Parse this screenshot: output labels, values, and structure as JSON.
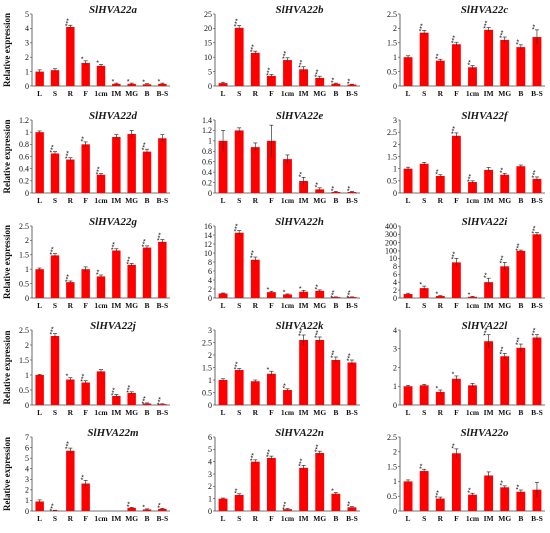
{
  "figure": {
    "ylabel": "Relative expression",
    "bar_color": "#ff0000",
    "error_color": "#333333"
  },
  "chart_data": [
    {
      "type": "bar",
      "title": "SlHVA22a",
      "ylabel": "Relative expression",
      "categories": [
        "L",
        "S",
        "R",
        "F",
        "1cm",
        "IM",
        "MG",
        "B",
        "B-S"
      ],
      "values": [
        1.0,
        1.1,
        4.1,
        1.6,
        1.4,
        0.15,
        0.15,
        0.12,
        0.15
      ],
      "errors": [
        0.12,
        0.1,
        0.12,
        0.15,
        0.1,
        0.05,
        0.05,
        0.04,
        0.05
      ],
      "significance": [
        "",
        "",
        "***",
        "*",
        "*",
        "*",
        "*",
        "*",
        "*"
      ],
      "ylim": [
        0,
        5
      ],
      "yticks": [
        "0",
        "1",
        "2",
        "3",
        "4",
        "5"
      ]
    },
    {
      "type": "bar",
      "title": "SlHVA22b",
      "ylabel": "",
      "categories": [
        "L",
        "S",
        "R",
        "F",
        "1cm",
        "IM",
        "MG",
        "B",
        "B-S"
      ],
      "values": [
        1.0,
        20.2,
        11.5,
        3.5,
        9.0,
        5.8,
        2.8,
        0.8,
        0.5
      ],
      "errors": [
        0.3,
        0.8,
        0.6,
        0.5,
        0.8,
        0.9,
        0.6,
        0.2,
        0.1
      ],
      "significance": [
        "",
        "***",
        "***",
        "***",
        "***",
        "***",
        "***",
        "**",
        "**"
      ],
      "ylim": [
        0,
        25
      ],
      "yticks": [
        "0",
        "5",
        "10",
        "15",
        "20",
        "25"
      ]
    },
    {
      "type": "bar",
      "title": "SlHVA22c",
      "ylabel": "",
      "categories": [
        "L",
        "S",
        "R",
        "F",
        "1cm",
        "IM",
        "MG",
        "B",
        "B-S"
      ],
      "values": [
        1.0,
        1.85,
        0.88,
        1.45,
        0.65,
        1.95,
        1.6,
        1.35,
        1.7
      ],
      "errors": [
        0.05,
        0.08,
        0.05,
        0.07,
        0.06,
        0.08,
        0.1,
        0.08,
        0.25
      ],
      "significance": [
        "",
        "***",
        "**",
        "***",
        "**",
        "***",
        "***",
        "**",
        "**"
      ],
      "ylim": [
        0,
        2.5
      ],
      "yticks": [
        "0",
        "0.5",
        "1",
        "1.5",
        "2",
        "2.5"
      ]
    },
    {
      "type": "bar",
      "title": "SlHVA22d",
      "ylabel": "Relative expression",
      "categories": [
        "L",
        "S",
        "R",
        "F",
        "1cm",
        "IM",
        "MG",
        "B",
        "B-S"
      ],
      "values": [
        1.0,
        0.65,
        0.55,
        0.8,
        0.3,
        0.92,
        0.97,
        0.68,
        0.9
      ],
      "errors": [
        0.02,
        0.03,
        0.03,
        0.04,
        0.02,
        0.04,
        0.06,
        0.04,
        0.06
      ],
      "significance": [
        "",
        "***",
        "***",
        "**",
        "***",
        "",
        "",
        "***",
        ""
      ],
      "ylim": [
        0,
        1.2
      ],
      "yticks": [
        "0",
        "0.2",
        "0.4",
        "0.6",
        "0.8",
        "1",
        "1.2"
      ]
    },
    {
      "type": "bar",
      "title": "SlHVA22e",
      "ylabel": "",
      "categories": [
        "L",
        "S",
        "R",
        "F",
        "1cm",
        "IM",
        "MG",
        "B",
        "B-S"
      ],
      "values": [
        1.0,
        1.2,
        0.88,
        1.0,
        0.65,
        0.23,
        0.07,
        0.02,
        0.02
      ],
      "errors": [
        0.2,
        0.05,
        0.08,
        0.3,
        0.08,
        0.07,
        0.03,
        0.01,
        0.01
      ],
      "significance": [
        "",
        "",
        "",
        "",
        "",
        "**",
        "**",
        "**",
        "**"
      ],
      "ylim": [
        0,
        1.4
      ],
      "yticks": [
        "0",
        "0.2",
        "0.4",
        "0.6",
        "0.8",
        "1",
        "1.2",
        "1.4"
      ]
    },
    {
      "type": "bar",
      "title": "SlHVA22f",
      "ylabel": "",
      "categories": [
        "L",
        "S",
        "R",
        "F",
        "1cm",
        "IM",
        "MG",
        "B",
        "B-S"
      ],
      "values": [
        1.0,
        1.2,
        0.7,
        2.35,
        0.45,
        0.95,
        0.75,
        1.1,
        0.58
      ],
      "errors": [
        0.06,
        0.06,
        0.05,
        0.12,
        0.05,
        0.1,
        0.06,
        0.05,
        0.08
      ],
      "significance": [
        "",
        "",
        "**",
        "***",
        "***",
        "",
        "**",
        "",
        "***"
      ],
      "ylim": [
        0,
        3
      ],
      "yticks": [
        "0",
        "0.5",
        "1",
        "1.5",
        "2",
        "2.5",
        "3"
      ]
    },
    {
      "type": "bar",
      "title": "SlHVA22g",
      "ylabel": "Relative expression",
      "categories": [
        "L",
        "S",
        "R",
        "F",
        "1cm",
        "IM",
        "MG",
        "B",
        "B-S"
      ],
      "values": [
        1.0,
        1.48,
        0.55,
        1.0,
        0.75,
        1.65,
        1.15,
        1.75,
        1.95
      ],
      "errors": [
        0.04,
        0.06,
        0.04,
        0.08,
        0.05,
        0.06,
        0.05,
        0.06,
        0.08
      ],
      "significance": [
        "",
        "***",
        "***",
        "",
        "**",
        "***",
        "***",
        "***",
        "***"
      ],
      "ylim": [
        0,
        2.5
      ],
      "yticks": [
        "0",
        "0.5",
        "1",
        "1.5",
        "2",
        "2.5"
      ]
    },
    {
      "type": "bar",
      "title": "SlHVA22h",
      "ylabel": "",
      "categories": [
        "L",
        "S",
        "R",
        "F",
        "1cm",
        "IM",
        "MG",
        "B",
        "B-S"
      ],
      "values": [
        1.0,
        14.5,
        8.5,
        1.3,
        0.8,
        1.4,
        1.6,
        0.2,
        0.2
      ],
      "errors": [
        0.1,
        0.5,
        0.6,
        0.2,
        0.1,
        0.3,
        0.2,
        0.05,
        0.05
      ],
      "significance": [
        "",
        "***",
        "***",
        "*",
        "*",
        "*",
        "**",
        "***",
        "***"
      ],
      "ylim": [
        0,
        16
      ],
      "yticks": [
        "0",
        "2",
        "4",
        "6",
        "8",
        "10",
        "12",
        "14",
        "16"
      ]
    },
    {
      "type": "bar",
      "title": "SlHVA22i",
      "ylabel": "",
      "categories": [
        "L",
        "S",
        "R",
        "F",
        "1cm",
        "IM",
        "MG",
        "B",
        "B-S"
      ],
      "values": [
        1.0,
        2.5,
        0.5,
        9.0,
        0.3,
        4.0,
        8.0,
        100,
        300
      ],
      "errors": [
        0.2,
        0.5,
        0.1,
        1.0,
        0.1,
        1.0,
        1.0,
        10,
        20
      ],
      "significance": [
        "",
        "*",
        "*",
        "***",
        "*",
        "**",
        "***",
        "***",
        "***"
      ],
      "ylim": [
        0,
        400
      ],
      "scale": "broken",
      "yticks": [
        "0",
        "2",
        "4",
        "6",
        "8",
        "10",
        "100",
        "200",
        "300",
        "400"
      ]
    },
    {
      "type": "bar",
      "title": "SlHVA22j",
      "ylabel": "Relative expression",
      "categories": [
        "L",
        "S",
        "R",
        "F",
        "1cm",
        "IM",
        "MG",
        "B",
        "B-S"
      ],
      "values": [
        1.0,
        2.3,
        0.85,
        0.75,
        1.12,
        0.3,
        0.4,
        0.05,
        0.03
      ],
      "errors": [
        0.02,
        0.08,
        0.06,
        0.06,
        0.06,
        0.05,
        0.04,
        0.02,
        0.01
      ],
      "significance": [
        "",
        "***",
        "*",
        "***",
        "",
        "***",
        "***",
        "***",
        "***"
      ],
      "ylim": [
        0,
        2.5
      ],
      "yticks": [
        "0",
        "0.5",
        "1",
        "1.5",
        "2",
        "2.5"
      ]
    },
    {
      "type": "bar",
      "title": "SlHVA22k",
      "ylabel": "",
      "categories": [
        "L",
        "S",
        "R",
        "F",
        "1cm",
        "IM",
        "MG",
        "B",
        "B-S"
      ],
      "values": [
        1.0,
        1.4,
        0.95,
        1.25,
        0.6,
        2.6,
        2.6,
        1.8,
        1.7
      ],
      "errors": [
        0.05,
        0.06,
        0.05,
        0.1,
        0.05,
        0.2,
        0.12,
        0.12,
        0.1
      ],
      "significance": [
        "",
        "***",
        "",
        "*",
        "**",
        "***",
        "***",
        "***",
        "***"
      ],
      "ylim": [
        0,
        3
      ],
      "yticks": [
        "0",
        "0.5",
        "1",
        "1.5",
        "2",
        "2.5",
        "3"
      ]
    },
    {
      "type": "bar",
      "title": "SlHVA22l",
      "ylabel": "",
      "categories": [
        "L",
        "S",
        "R",
        "F",
        "1cm",
        "IM",
        "MG",
        "B",
        "B-S"
      ],
      "values": [
        1.0,
        1.05,
        0.7,
        1.4,
        1.05,
        3.4,
        2.6,
        3.05,
        3.6
      ],
      "errors": [
        0.05,
        0.05,
        0.1,
        0.15,
        0.1,
        0.35,
        0.15,
        0.2,
        0.15
      ],
      "significance": [
        "",
        "",
        "*",
        "*",
        "",
        "***",
        "***",
        "***",
        "***"
      ],
      "ylim": [
        0,
        4
      ],
      "yticks": [
        "0",
        "1",
        "2",
        "3",
        "4"
      ]
    },
    {
      "type": "bar",
      "title": "SlHVA22m",
      "ylabel": "Relative expression",
      "categories": [
        "L",
        "S",
        "R",
        "F",
        "1cm",
        "IM",
        "MG",
        "B",
        "B-S"
      ],
      "values": [
        0.9,
        0.05,
        5.7,
        2.6,
        0.0,
        0.0,
        0.3,
        0.15,
        0.2
      ],
      "errors": [
        0.15,
        0.02,
        0.25,
        0.3,
        0.0,
        0.0,
        0.05,
        0.05,
        0.05
      ],
      "significance": [
        "",
        "***",
        "***",
        "**",
        "",
        "",
        "**",
        "*",
        "**"
      ],
      "ylim": [
        0,
        7
      ],
      "yticks": [
        "0",
        "1",
        "2",
        "3",
        "4",
        "5",
        "6",
        "7"
      ]
    },
    {
      "type": "bar",
      "title": "SlHVA22n",
      "ylabel": "",
      "categories": [
        "L",
        "S",
        "R",
        "F",
        "1cm",
        "IM",
        "MG",
        "B",
        "B-S"
      ],
      "values": [
        1.0,
        1.3,
        4.0,
        4.3,
        0.15,
        3.5,
        4.7,
        1.4,
        0.3
      ],
      "errors": [
        0.05,
        0.1,
        0.15,
        0.15,
        0.05,
        0.2,
        0.15,
        0.1,
        0.05
      ],
      "significance": [
        "",
        "**",
        "***",
        "***",
        "***",
        "***",
        "***",
        "*",
        "**"
      ],
      "ylim": [
        0,
        6
      ],
      "yticks": [
        "0",
        "1",
        "2",
        "3",
        "4",
        "5",
        "6"
      ]
    },
    {
      "type": "bar",
      "title": "SlHVA22o",
      "ylabel": "",
      "categories": [
        "L",
        "S",
        "R",
        "F",
        "1cm",
        "IM",
        "MG",
        "B",
        "B-S"
      ],
      "values": [
        1.0,
        1.35,
        0.42,
        1.95,
        0.55,
        1.2,
        0.8,
        0.65,
        0.72
      ],
      "errors": [
        0.05,
        0.06,
        0.05,
        0.15,
        0.05,
        0.12,
        0.05,
        0.06,
        0.25
      ],
      "significance": [
        "",
        "**",
        "***",
        "**",
        "**",
        "",
        "**",
        "**",
        ""
      ],
      "ylim": [
        0,
        2.5
      ],
      "yticks": [
        "0",
        "0.5",
        "1",
        "1.5",
        "2",
        "2.5"
      ]
    }
  ]
}
